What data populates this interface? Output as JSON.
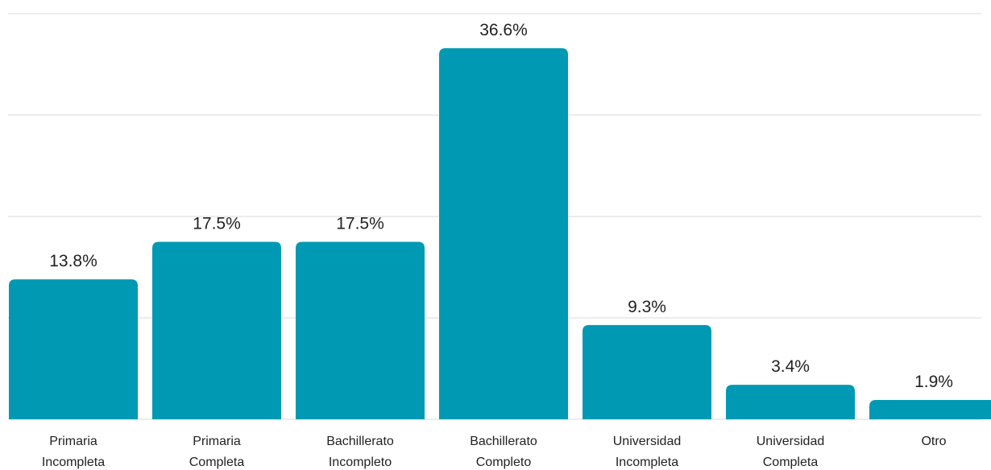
{
  "chart_data": {
    "type": "bar",
    "categories": [
      "Primaria Incompleta",
      "Primaria Completa",
      "Bachillerato Incompleto",
      "Bachillerato Completo",
      "Universidad Incompleta",
      "Universidad Completa",
      "Otro"
    ],
    "values": [
      13.8,
      17.5,
      17.5,
      36.6,
      9.3,
      3.4,
      1.9
    ],
    "value_labels": [
      "13.8%",
      "17.5%",
      "17.5%",
      "36.6%",
      "9.3%",
      "3.4%",
      "1.9%"
    ],
    "color": "#0099b4",
    "ylim": [
      0,
      40
    ],
    "yticks": [
      0,
      10,
      20,
      30,
      40
    ],
    "grid": true
  }
}
